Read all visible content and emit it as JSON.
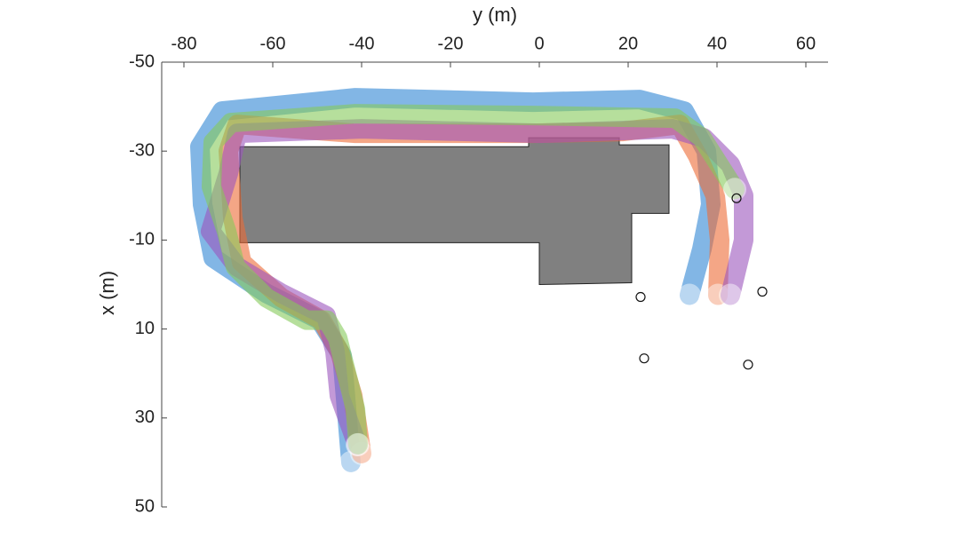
{
  "chart_data": {
    "type": "trajectory",
    "xlabel": "y (m)",
    "ylabel": "x (m)",
    "xlim": [
      -85,
      65
    ],
    "ylim": [
      -50,
      50
    ],
    "y_reversed": true,
    "x_axis_position": "top",
    "xticks": [
      -80,
      -60,
      -40,
      -20,
      0,
      20,
      40,
      60
    ],
    "yticks": [
      -50,
      -30,
      -10,
      10,
      30,
      50
    ],
    "series": [
      {
        "color": "#2f86d3",
        "x": [
          33.8,
          36.6,
          38.6,
          37.6,
          32.6,
          22.6,
          -1.4,
          -41.4,
          -71.4,
          -76.4,
          -75.8,
          -73.4,
          -61.4,
          -49.4,
          -44.4,
          -43.4,
          -42.4
        ],
        "values": [
          2.4,
          -8,
          -18,
          -30,
          -39,
          -41.6,
          -41,
          -42,
          -39,
          -31,
          -18,
          -6,
          2,
          8,
          16,
          28,
          40
        ]
      },
      {
        "color": "#ec6a35",
        "x": [
          40.2,
          40.6,
          39.6,
          35.6,
          31.6,
          18.6,
          -1.4,
          -41.4,
          -68,
          -70,
          -69,
          -67,
          -58,
          -49,
          -45,
          -42,
          -40
        ],
        "values": [
          2.4,
          -10,
          -20,
          -29,
          -36,
          -34.4,
          -34,
          -34,
          -36,
          -30,
          -15,
          -5,
          3,
          8,
          15,
          25,
          38
        ]
      },
      {
        "color": "#9b55bd",
        "x": [
          43,
          46,
          46,
          43,
          37,
          30,
          0,
          -40,
          -68,
          -70,
          -74,
          -68,
          -58,
          -48,
          -46,
          -45,
          -41
        ],
        "values": [
          2.4,
          -10,
          -20,
          -27,
          -33,
          -35,
          -34,
          -35,
          -34,
          -25,
          -12,
          -4,
          2,
          7,
          15,
          25,
          36
        ]
      },
      {
        "color": "#86c95a",
        "x": [
          44,
          36.6,
          30.6,
          -1.4,
          -41.4,
          -69.4,
          -73.4,
          -73.8,
          -70.4,
          -68.4,
          -61.4,
          -52.4,
          -47.8,
          -45.4,
          -43.4,
          -41.4,
          -40.8
        ],
        "values": [
          -21.4,
          -33,
          -37.4,
          -38,
          -38.4,
          -36.4,
          -32,
          -22,
          -12,
          -4,
          3,
          8,
          8,
          12,
          20,
          28,
          36
        ]
      }
    ],
    "building": {
      "color": "#808080",
      "x": [
        -67.4,
        -2.4,
        -2.4,
        18,
        18,
        29.2,
        29.2,
        20.8,
        20.8,
        0,
        0,
        -67.4
      ],
      "values": [
        -31,
        -31,
        -33,
        -33,
        -31.4,
        -31.4,
        -16,
        -16,
        -0.4,
        0,
        -9.4,
        -9.4
      ]
    },
    "landmarks": {
      "x": [
        44.4,
        22.8,
        50.2,
        23.6,
        47
      ],
      "values": [
        -19.4,
        2.8,
        1.6,
        16.6,
        18
      ]
    }
  }
}
